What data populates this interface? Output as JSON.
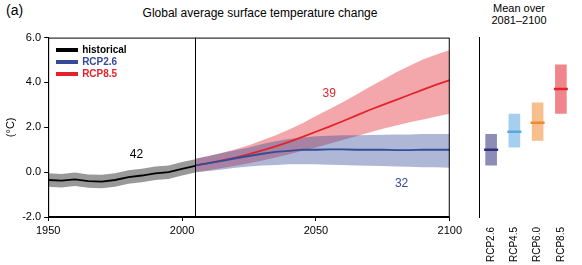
{
  "chart_data": [
    {
      "type": "line",
      "panel": "(a)",
      "title": "Global average surface temperature change",
      "ylabel": "(°C)",
      "x": [
        1950,
        1955,
        1960,
        1965,
        1970,
        1975,
        1980,
        1985,
        1990,
        1995,
        2000,
        2005,
        2010,
        2015,
        2020,
        2025,
        2030,
        2035,
        2040,
        2045,
        2050,
        2055,
        2060,
        2065,
        2070,
        2075,
        2080,
        2085,
        2090,
        2095,
        2100
      ],
      "xlim": [
        1950,
        2100
      ],
      "xticks": [
        1950,
        2000,
        2050,
        2100
      ],
      "ylim": [
        -2,
        6
      ],
      "yticks": [
        {
          "value": -2,
          "label": "-2.0"
        },
        {
          "value": 0,
          "label": "0.0"
        },
        {
          "value": 2,
          "label": "2.0"
        },
        {
          "value": 4,
          "label": "4.0"
        },
        {
          "value": 6,
          "label": "6.0"
        }
      ],
      "grid": false,
      "legend": "upper left",
      "vertical_line": 2005,
      "series": [
        {
          "name": "historical",
          "color": "#000000",
          "values": [
            -0.35,
            -0.38,
            -0.32,
            -0.4,
            -0.42,
            -0.35,
            -0.22,
            -0.15,
            -0.05,
            0.0,
            0.15,
            0.28,
            null,
            null,
            null,
            null,
            null,
            null,
            null,
            null,
            null,
            null,
            null,
            null,
            null,
            null,
            null,
            null,
            null,
            null,
            null
          ],
          "low": [
            -0.65,
            -0.68,
            -0.62,
            -0.7,
            -0.72,
            -0.65,
            -0.52,
            -0.45,
            -0.35,
            -0.3,
            -0.15,
            -0.02,
            null,
            null,
            null,
            null,
            null,
            null,
            null,
            null,
            null,
            null,
            null,
            null,
            null,
            null,
            null,
            null,
            null,
            null,
            null
          ],
          "high": [
            -0.05,
            -0.08,
            -0.02,
            -0.1,
            -0.12,
            -0.05,
            0.08,
            0.15,
            0.25,
            0.3,
            0.45,
            0.58,
            null,
            null,
            null,
            null,
            null,
            null,
            null,
            null,
            null,
            null,
            null,
            null,
            null,
            null,
            null,
            null,
            null,
            null,
            null
          ]
        },
        {
          "name": "RCP2.6",
          "color": "#344b97",
          "values": [
            null,
            null,
            null,
            null,
            null,
            null,
            null,
            null,
            null,
            null,
            null,
            0.3,
            0.4,
            0.5,
            0.62,
            0.72,
            0.82,
            0.9,
            0.95,
            1.0,
            1.0,
            1.02,
            1.02,
            1.0,
            1.0,
            1.0,
            0.98,
            0.98,
            1.0,
            1.0,
            1.0
          ],
          "low": [
            null,
            null,
            null,
            null,
            null,
            null,
            null,
            null,
            null,
            null,
            null,
            0.0,
            0.05,
            0.12,
            0.2,
            0.25,
            0.3,
            0.32,
            0.35,
            0.35,
            0.35,
            0.33,
            0.32,
            0.3,
            0.28,
            0.27,
            0.25,
            0.24,
            0.22,
            0.22,
            0.2
          ],
          "high": [
            null,
            null,
            null,
            null,
            null,
            null,
            null,
            null,
            null,
            null,
            null,
            0.6,
            0.72,
            0.85,
            0.98,
            1.1,
            1.25,
            1.38,
            1.48,
            1.55,
            1.6,
            1.62,
            1.65,
            1.65,
            1.66,
            1.67,
            1.68,
            1.68,
            1.7,
            1.7,
            1.7
          ]
        },
        {
          "name": "RCP8.5",
          "color": "#e3232c",
          "values": [
            null,
            null,
            null,
            null,
            null,
            null,
            null,
            null,
            null,
            null,
            null,
            0.3,
            0.4,
            0.52,
            0.65,
            0.8,
            0.97,
            1.15,
            1.35,
            1.57,
            1.8,
            2.03,
            2.27,
            2.52,
            2.77,
            3.0,
            3.22,
            3.45,
            3.68,
            3.9,
            4.1
          ],
          "low": [
            null,
            null,
            null,
            null,
            null,
            null,
            null,
            null,
            null,
            null,
            null,
            0.0,
            0.08,
            0.18,
            0.28,
            0.4,
            0.52,
            0.65,
            0.8,
            0.95,
            1.1,
            1.27,
            1.43,
            1.6,
            1.77,
            1.93,
            2.08,
            2.22,
            2.35,
            2.48,
            2.6
          ],
          "high": [
            null,
            null,
            null,
            null,
            null,
            null,
            null,
            null,
            null,
            null,
            null,
            0.6,
            0.72,
            0.86,
            1.02,
            1.2,
            1.42,
            1.65,
            1.9,
            2.18,
            2.5,
            2.8,
            3.12,
            3.45,
            3.8,
            4.12,
            4.45,
            4.75,
            5.02,
            5.25,
            5.45
          ]
        }
      ],
      "annotations": [
        {
          "text": "42",
          "x": 1983,
          "y": 0.8,
          "color": "#000000"
        },
        {
          "text": "39",
          "x": 2055,
          "y": 3.5,
          "color": "#e3232c"
        },
        {
          "text": "32",
          "x": 2082,
          "y": -0.5,
          "color": "#344b97"
        }
      ]
    },
    {
      "type": "bar",
      "title": "Mean over 2081–2100",
      "categories": [
        "RCP2.6",
        "RCP4.5",
        "RCP6.0",
        "RCP8.5"
      ],
      "values": [
        1.0,
        1.8,
        2.2,
        3.7
      ],
      "low": [
        0.3,
        1.1,
        1.4,
        2.6
      ],
      "high": [
        1.7,
        2.6,
        3.1,
        4.8
      ],
      "colors": [
        "#2e2e7a",
        "#5aa8e0",
        "#f08a30",
        "#e3232c"
      ],
      "ylim": [
        -2,
        6
      ],
      "tick_labels": "x"
    }
  ]
}
